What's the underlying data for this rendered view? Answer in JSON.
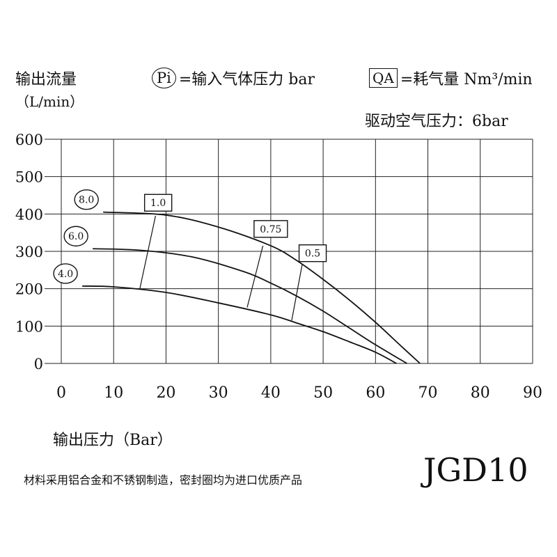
{
  "header": {
    "y_axis_title": "输出流量",
    "y_axis_unit": "（L/min）",
    "legend_pi_symbol": "Pi",
    "legend_pi_text": "=输入气体压力 bar",
    "legend_qa_symbol": "QA",
    "legend_qa_text": "=耗气量 Nm³/min",
    "drive_pressure": "驱动空气压力：6bar"
  },
  "x_axis_title": "输出压力（Bar）",
  "footer_note": "材料采用铝合金和不锈钢制造，密封圈均为进口优质产品",
  "model": "JGD10",
  "chart_data": {
    "type": "line",
    "xlim": [
      0,
      90
    ],
    "ylim": [
      0,
      600
    ],
    "x_ticks": [
      "0",
      "10",
      "20",
      "30",
      "40",
      "50",
      "60",
      "70",
      "80",
      "90"
    ],
    "y_ticks": [
      "0",
      "100",
      "200",
      "300",
      "400",
      "500",
      "600"
    ],
    "grid": true,
    "series": [
      {
        "name": "8.0",
        "x": [
          8,
          20,
          30,
          40,
          45,
          50,
          55,
          60,
          65,
          68.5
        ],
        "y": [
          405,
          397,
          365,
          315,
          275,
          225,
          170,
          110,
          45,
          0
        ]
      },
      {
        "name": "6.0",
        "x": [
          6,
          15,
          25,
          35,
          40,
          45,
          50,
          55,
          60,
          66
        ],
        "y": [
          307,
          303,
          285,
          245,
          215,
          180,
          140,
          95,
          50,
          0
        ]
      },
      {
        "name": "4.0",
        "x": [
          4,
          10,
          20,
          30,
          40,
          45,
          50,
          55,
          60,
          64
        ],
        "y": [
          207,
          205,
          190,
          162,
          130,
          108,
          85,
          58,
          30,
          0
        ]
      }
    ],
    "qa_lines": [
      {
        "label": "1.0",
        "points": [
          [
            18,
            395
          ],
          [
            15,
            200
          ]
        ],
        "label_at": [
          18.5,
          430
        ]
      },
      {
        "label": "0.75",
        "points": [
          [
            38.5,
            315
          ],
          [
            35.5,
            150
          ]
        ],
        "label_at": [
          40,
          360
        ]
      },
      {
        "label": "0.5",
        "points": [
          [
            46,
            265
          ],
          [
            44,
            115
          ]
        ],
        "label_at": [
          48,
          295
        ]
      }
    ]
  }
}
